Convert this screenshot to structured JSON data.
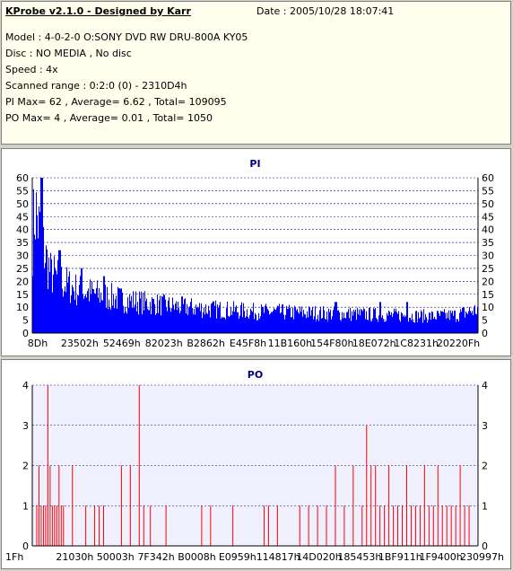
{
  "info": {
    "title": "KProbe v2.1.0 - Designed by Karr",
    "date": "Date : 2005/10/28 18:07:41",
    "lines": [
      "Model : 4-0-2-0 O:SONY    DVD RW DRU-800A  KY05",
      "Disc : NO MEDIA , No disc",
      "Speed : 4x",
      "Scanned range : 0:2:0 (0) - 2310D4h",
      "PI Max= 62 , Average= 6.62 , Total= 109095",
      "PO Max= 4 , Average= 0.01 , Total= 1050"
    ]
  },
  "colors": {
    "pi": "#0000ff",
    "po": "#ff0000",
    "grid": "#000080",
    "plot_bg_po": "#f0f0ff"
  },
  "chart_data": [
    {
      "type": "bar",
      "title": "PI",
      "ylim": [
        0,
        60
      ],
      "yticks": [
        0,
        5,
        10,
        15,
        20,
        25,
        30,
        35,
        40,
        45,
        50,
        55,
        60
      ],
      "xtick_labels": [
        "8Dh",
        "23502h",
        "52469h",
        "82023h",
        "B2862h",
        "E45F8h",
        "11B160h",
        "154F80h",
        "18E072h",
        "1C8231h",
        "20220Fh"
      ],
      "grid": true,
      "profile_x": [
        0,
        0.005,
        0.01,
        0.02,
        0.04,
        0.07,
        0.1,
        0.15,
        0.2,
        0.3,
        0.4,
        0.5,
        0.6,
        0.7,
        0.8,
        0.9,
        0.95,
        1.0
      ],
      "profile_y": [
        40,
        52,
        48,
        38,
        25,
        21,
        18,
        16,
        14,
        11.5,
        10,
        9,
        8.5,
        8,
        7.5,
        7,
        7.5,
        10
      ],
      "spikes": [
        [
          0.02,
          62
        ],
        [
          0.06,
          32
        ],
        [
          0.11,
          25
        ],
        [
          0.16,
          22
        ],
        [
          0.68,
          12
        ],
        [
          0.78,
          12
        ],
        [
          0.84,
          12
        ]
      ],
      "max": 62,
      "average": 6.62,
      "total": 109095
    },
    {
      "type": "bar",
      "title": "PO",
      "ylim": [
        0,
        4
      ],
      "yticks": [
        0,
        1,
        2,
        3,
        4
      ],
      "xtick_labels": [
        "1Fh",
        "21030h",
        "50003h",
        "7F342h",
        "B0008h",
        "E0959h",
        "114817h",
        "14D020h",
        "185453h",
        "1BF911h",
        "1F9400h",
        "230997h"
      ],
      "grid": true,
      "x": [
        0.01,
        0.015,
        0.02,
        0.025,
        0.03,
        0.035,
        0.04,
        0.045,
        0.05,
        0.055,
        0.06,
        0.065,
        0.07,
        0.09,
        0.12,
        0.14,
        0.15,
        0.16,
        0.2,
        0.22,
        0.24,
        0.25,
        0.265,
        0.3,
        0.38,
        0.4,
        0.45,
        0.52,
        0.53,
        0.55,
        0.6,
        0.62,
        0.64,
        0.66,
        0.68,
        0.7,
        0.72,
        0.74,
        0.75,
        0.76,
        0.77,
        0.78,
        0.79,
        0.8,
        0.81,
        0.82,
        0.83,
        0.84,
        0.85,
        0.86,
        0.87,
        0.88,
        0.89,
        0.9,
        0.91,
        0.92,
        0.93,
        0.94,
        0.95,
        0.96,
        0.97,
        0.98
      ],
      "values": [
        1,
        2,
        1,
        1,
        1,
        4,
        2,
        1,
        1,
        1,
        2,
        1,
        1,
        2,
        1,
        1,
        1,
        1,
        2,
        2,
        4,
        1,
        1,
        1,
        1,
        1,
        1,
        1,
        1,
        1,
        1,
        1,
        1,
        1,
        2,
        1,
        2,
        1,
        3,
        2,
        2,
        1,
        1,
        2,
        1,
        1,
        1,
        2,
        1,
        1,
        1,
        2,
        1,
        1,
        2,
        1,
        1,
        1,
        1,
        2,
        1,
        1
      ],
      "max": 4,
      "average": 0.01,
      "total": 1050
    }
  ]
}
